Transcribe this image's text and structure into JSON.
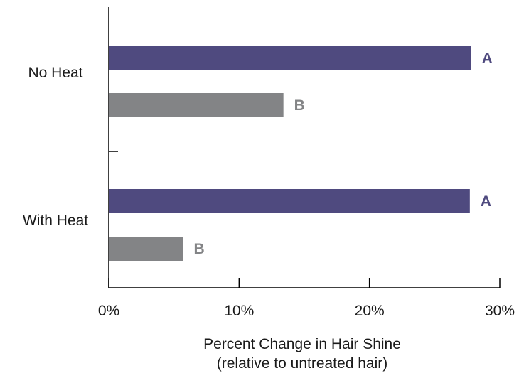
{
  "chart_data": {
    "type": "bar",
    "orientation": "horizontal",
    "title": "",
    "categories": [
      "No Heat",
      "With Heat"
    ],
    "series": [
      {
        "label": "A",
        "color": "#4f4a7f",
        "values": [
          27.8,
          27.7
        ]
      },
      {
        "label": "B",
        "color": "#838486",
        "values": [
          13.4,
          5.7
        ]
      }
    ],
    "xlim": [
      0,
      30
    ],
    "xticks": [
      {
        "value": 0,
        "label": "0%"
      },
      {
        "value": 10,
        "label": "10%"
      },
      {
        "value": 20,
        "label": "20%"
      },
      {
        "value": 30,
        "label": "30%"
      }
    ],
    "xlabel_lines": [
      "Percent Change in Hair Shine",
      "(relative to untreated hair)"
    ],
    "ylabel": "",
    "grid": false,
    "legend": "none"
  }
}
